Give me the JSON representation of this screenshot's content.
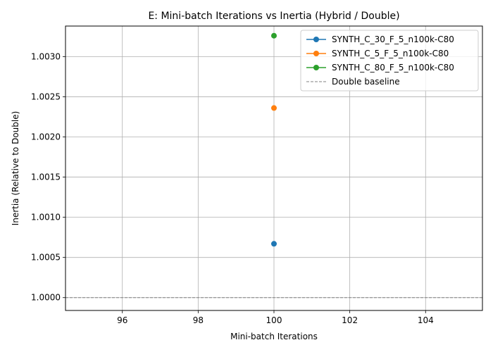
{
  "chart_data": {
    "type": "line",
    "title": "E: Mini-batch Iterations vs Inertia (Hybrid / Double)",
    "xlabel": "Mini-batch Iterations",
    "ylabel": "Inertia (Relative to Double)",
    "xlim": [
      94.5,
      105.5
    ],
    "ylim": [
      0.99984,
      1.00338
    ],
    "xticks": [
      96,
      98,
      100,
      102,
      104
    ],
    "yticks": [
      1.0,
      1.0005,
      1.001,
      1.0015,
      1.002,
      1.0025,
      1.003
    ],
    "grid": true,
    "legend_position": "top-right",
    "series": [
      {
        "name": "SYNTH_C_30_F_5_n100k-C80",
        "color": "#1f77b4",
        "x": [
          100
        ],
        "y": [
          1.00067
        ]
      },
      {
        "name": "SYNTH_C_5_F_5_n100k-C80",
        "color": "#ff7f0e",
        "x": [
          100
        ],
        "y": [
          1.00236
        ]
      },
      {
        "name": "SYNTH_C_80_F_5_n100k-C80",
        "color": "#2ca02c",
        "x": [
          100
        ],
        "y": [
          1.00326
        ]
      }
    ],
    "baseline": {
      "name": "Double baseline",
      "y": 1.0,
      "color": "#808080"
    }
  }
}
